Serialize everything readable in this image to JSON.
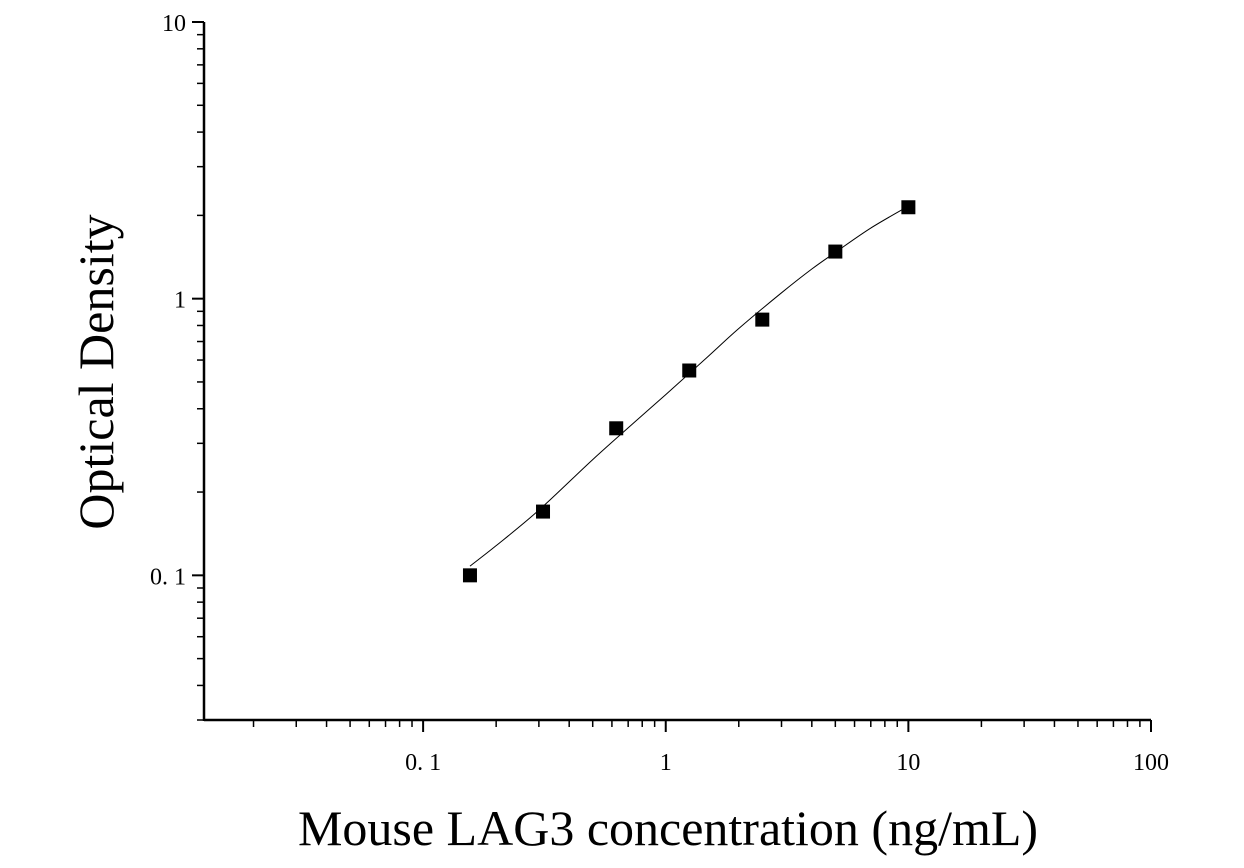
{
  "chart_data": {
    "type": "scatter",
    "title": "",
    "xlabel": "Mouse LAG3 concentration (ng/mL)",
    "ylabel": "Optical Density",
    "xscale": "log",
    "yscale": "log",
    "xlim": [
      0.0125,
      100
    ],
    "ylim": [
      0.03,
      10
    ],
    "x_tick_labels": [
      "0. 1",
      "1",
      "10",
      "100"
    ],
    "x_tick_values": [
      0.1,
      1,
      10,
      100
    ],
    "y_tick_labels": [
      "0. 1",
      "1",
      "10"
    ],
    "y_tick_values": [
      0.1,
      1,
      10
    ],
    "grid": false,
    "legend": "none",
    "marker": "square",
    "marker_color": "#000000",
    "series": [
      {
        "x": [
          0.156,
          0.312,
          0.625,
          1.25,
          2.5,
          5,
          10
        ],
        "y": [
          0.1,
          0.17,
          0.34,
          0.55,
          0.84,
          1.48,
          2.14
        ]
      }
    ],
    "fit_curve": {
      "x": [
        0.156,
        0.2,
        0.3,
        0.5,
        0.75,
        1.0,
        1.5,
        2.0,
        3.0,
        4.0,
        5.0,
        7.0,
        10.0
      ],
      "y": [
        0.108,
        0.128,
        0.172,
        0.262,
        0.36,
        0.45,
        0.62,
        0.78,
        1.05,
        1.28,
        1.47,
        1.8,
        2.16
      ]
    }
  }
}
